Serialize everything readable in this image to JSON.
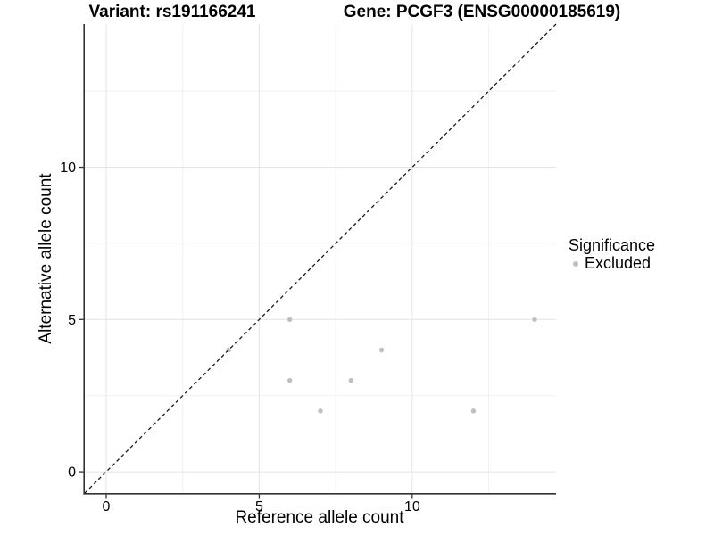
{
  "chart_data": {
    "type": "scatter",
    "title_left": "Variant: rs191166241",
    "title_right": "Gene: PCGF3 (ENSG00000185619)",
    "xlabel": "Reference allele count",
    "ylabel": "Alternative allele count",
    "xlim": [
      -0.7,
      14.7
    ],
    "ylim": [
      -0.7,
      14.7
    ],
    "x_ticks": [
      0,
      5,
      10
    ],
    "y_ticks": [
      0,
      5,
      10
    ],
    "x_minor": [
      2.5,
      7.5,
      12.5
    ],
    "y_minor": [
      2.5,
      7.5,
      12.5
    ],
    "grid": "major+minor on white background",
    "series": [
      {
        "name": "Excluded",
        "color": "#bfbfbf",
        "marker": "circle",
        "points": [
          [
            4,
            4
          ],
          [
            6,
            5
          ],
          [
            6,
            3
          ],
          [
            7,
            2
          ],
          [
            8,
            3
          ],
          [
            9,
            4
          ],
          [
            12,
            2
          ],
          [
            14,
            5
          ]
        ]
      }
    ],
    "reference_line": {
      "kind": "y=x",
      "style": "dashed",
      "color": "#1a1a1a"
    },
    "legend": {
      "title": "Significance",
      "position": "right",
      "entries": [
        {
          "label": "Excluded",
          "color": "#bfbfbf"
        }
      ]
    },
    "colors": {
      "grid_major": "#e4e4e4",
      "grid_minor": "#f1f1f1",
      "axis_line": "#333333",
      "tick": "#333333",
      "text": "#000000"
    }
  }
}
